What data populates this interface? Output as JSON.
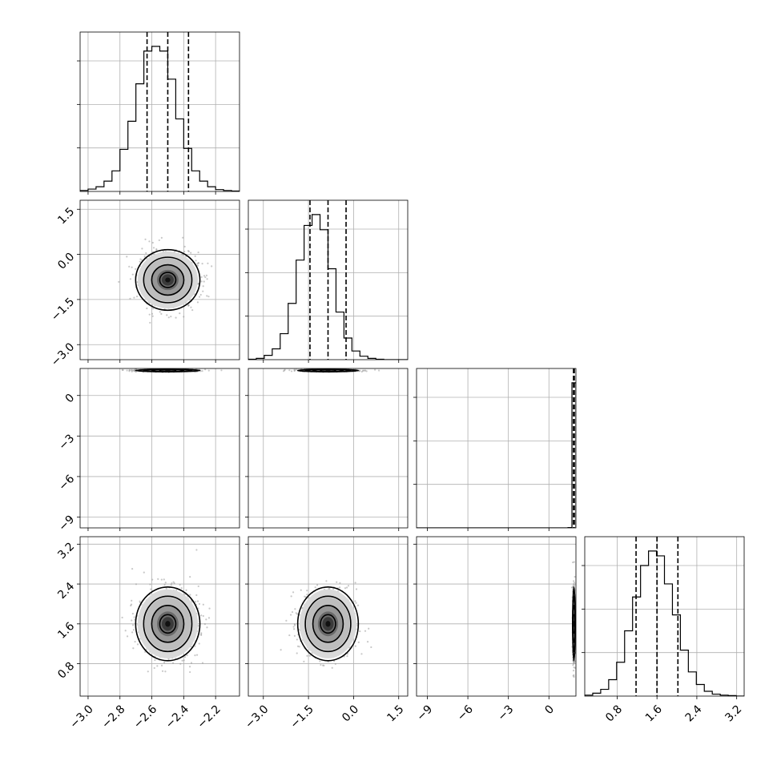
{
  "chart_data": {
    "type": "corner",
    "grid": true,
    "variables": [
      {
        "range": [
          -3.05,
          -2.05
        ],
        "ticks": [
          -3.0,
          -2.8,
          -2.6,
          -2.4,
          -2.2
        ],
        "tick_labels": [
          "−3.0",
          "−2.8",
          "−2.6",
          "−2.4",
          "−2.2"
        ],
        "mean": -2.5,
        "sd": 0.09,
        "quantiles": [
          -2.63,
          -2.5,
          -2.37
        ],
        "hist_bins": [
          -3.05,
          -2.05,
          20
        ],
        "hist_counts": [
          2,
          5,
          10,
          22,
          44,
          90,
          150,
          230,
          300,
          310,
          300,
          240,
          155,
          92,
          44,
          22,
          10,
          4,
          2,
          1
        ]
      },
      {
        "range": [
          -3.5,
          1.8
        ],
        "ticks": [
          -3.0,
          -1.5,
          0.0,
          1.5
        ],
        "tick_labels": [
          "−3.0",
          "−1.5",
          "0.0",
          "1.5"
        ],
        "mean": -0.85,
        "sd": 0.45,
        "quantiles": [
          -1.45,
          -0.85,
          -0.25
        ],
        "hist_bins": [
          -3.5,
          1.8,
          20
        ],
        "hist_counts": [
          1,
          3,
          10,
          25,
          60,
          130,
          230,
          310,
          335,
          300,
          210,
          110,
          50,
          20,
          8,
          3,
          1,
          0,
          0,
          0
        ]
      },
      {
        "range": [
          -9.8,
          2.0
        ],
        "ticks": [
          -9,
          -6,
          -3,
          0
        ],
        "tick_labels": [
          "−9",
          "−6",
          "−3",
          "0"
        ],
        "mean": 1.85,
        "sd": 0.04,
        "quantiles": [
          1.82,
          1.85,
          1.88
        ],
        "hist_bins": [
          -9.8,
          2.0,
          40
        ],
        "hist_counts": [
          0,
          0,
          0,
          0,
          0,
          0,
          0,
          0,
          0,
          0,
          0,
          0,
          0,
          0,
          0,
          0,
          0,
          0,
          0,
          0,
          0,
          0,
          0,
          0,
          0,
          0,
          0,
          0,
          0,
          0,
          0,
          0,
          0,
          0,
          0,
          0,
          0,
          0,
          1,
          400
        ]
      },
      {
        "range": [
          0.15,
          3.35
        ],
        "ticks": [
          0.8,
          1.6,
          2.4,
          3.2
        ],
        "tick_labels": [
          "0.8",
          "1.6",
          "2.4",
          "3.2"
        ],
        "mean": 1.6,
        "sd": 0.33,
        "quantiles": [
          1.18,
          1.6,
          2.02
        ],
        "hist_bins": [
          0.15,
          3.35,
          20
        ],
        "hist_counts": [
          2,
          6,
          14,
          34,
          70,
          135,
          205,
          270,
          300,
          290,
          232,
          168,
          95,
          50,
          24,
          10,
          4,
          2,
          1,
          0
        ]
      }
    ],
    "hist_y_ticks_fraction": [
      0.3,
      0.6,
      0.9
    ],
    "contour_levels_sigma": [
      0.5,
      1.0,
      1.5,
      2.0
    ]
  }
}
